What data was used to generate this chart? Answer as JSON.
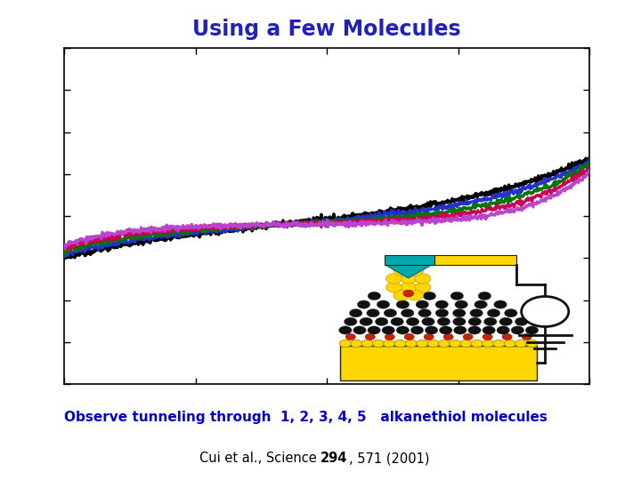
{
  "title": "Using a Few Molecules",
  "subtitle": "Observe tunneling through  1, 2, 3, 4, 5   alkanethiol molecules",
  "title_color": "#2222bb",
  "subtitle_color": "#0000cc",
  "bg_color": "#ffffff",
  "plot_bg_color": "#ffffff",
  "line_colors": [
    "#000000",
    "#2233cc",
    "#007700",
    "#cc0055",
    "#bb44cc"
  ],
  "line_widths": [
    2.5,
    2.2,
    2.2,
    2.2,
    2.2
  ],
  "noise_amplitude": 0.008,
  "curve_params": [
    {
      "base": 0.28,
      "expo": 1.8,
      "cross_shift": -0.18
    },
    {
      "base": 0.26,
      "expo": 2.2,
      "cross_shift": -0.16
    },
    {
      "base": 0.24,
      "expo": 2.8,
      "cross_shift": -0.14
    },
    {
      "base": 0.22,
      "expo": 3.5,
      "cross_shift": -0.12
    },
    {
      "base": 0.2,
      "expo": 4.5,
      "cross_shift": -0.1
    }
  ],
  "xlim": [
    -1.0,
    1.0
  ],
  "ylim": [
    -0.95,
    1.05
  ],
  "xticks": [
    -1.0,
    -0.5,
    0.0,
    0.5,
    1.0
  ],
  "yticks_count": 9
}
